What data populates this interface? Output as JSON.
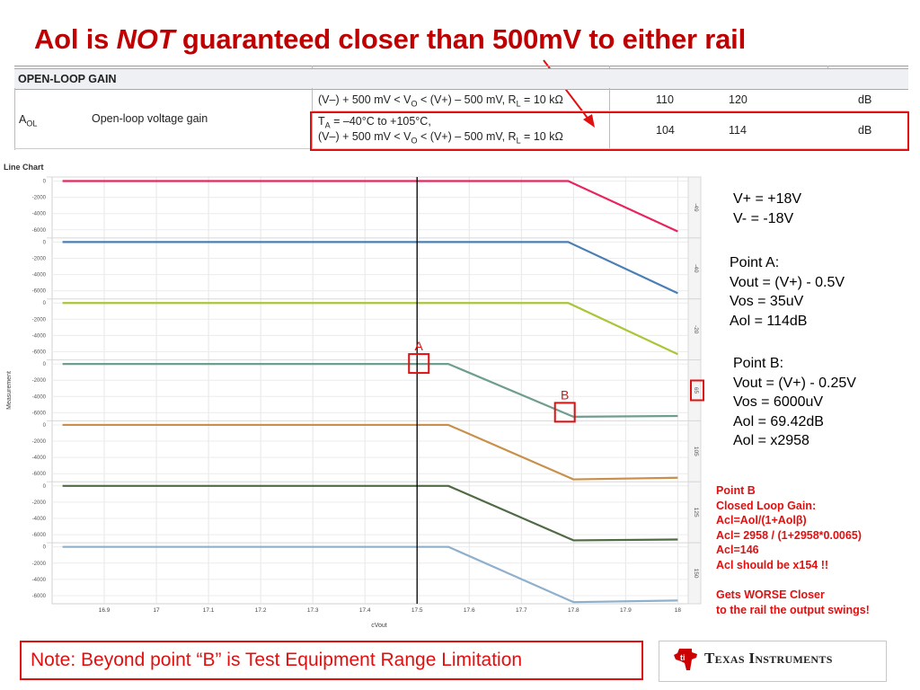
{
  "title": {
    "pre": "Aol is ",
    "emph": "NOT",
    "post": " guaranteed closer than 500mV to either rail"
  },
  "spec_table": {
    "header": "OPEN-LOOP GAIN",
    "symbol": "A",
    "symbol_sub": "OL",
    "parameter": "Open-loop voltage gain",
    "rows": [
      {
        "line1": "(V–) + 500 mV < V",
        "line1_sub": "O",
        "line1_mid": " < (V+) – 500 mV, R",
        "line1_sub2": "L",
        "line1_end": " = 10 kΩ",
        "line2_pre": "",
        "min": "110",
        "typ": "120",
        "unit": "dB"
      },
      {
        "line0_pre": "T",
        "line0_sub": "A",
        "line0_end": " = –40°C to +105°C,",
        "line1": "(V–) + 500 mV < V",
        "line1_sub": "O",
        "line1_mid": " < (V+) – 500 mV, R",
        "line1_sub2": "L",
        "line1_end": " = 10 kΩ",
        "min": "104",
        "typ": "114",
        "unit": "dB"
      }
    ]
  },
  "chart_data": {
    "type": "line",
    "title": "Line Chart",
    "xlabel": "cVout",
    "ylabel": "Measurement",
    "xlim": [
      16.8,
      18.02
    ],
    "x_ticks": [
      "16.9",
      "17",
      "17.1",
      "17.2",
      "17.3",
      "17.4",
      "17.5",
      "17.6",
      "17.7",
      "17.8",
      "17.9",
      "18"
    ],
    "panel_ylim": [
      -7000,
      500
    ],
    "panel_y_ticks": [
      "0",
      "-2000",
      "-4000",
      "-6000"
    ],
    "cursor_x": 17.5,
    "grid": true,
    "panels": [
      {
        "label": "-49",
        "color": "#e8245e",
        "points": [
          [
            16.82,
            0
          ],
          [
            17.79,
            0
          ],
          [
            18.0,
            -6200
          ]
        ]
      },
      {
        "label": "-40",
        "color": "#4a7fb5",
        "points": [
          [
            16.82,
            0
          ],
          [
            17.79,
            0
          ],
          [
            18.0,
            -6300
          ]
        ]
      },
      {
        "label": "-20",
        "color": "#a9c638",
        "points": [
          [
            16.82,
            0
          ],
          [
            17.79,
            0
          ],
          [
            18.0,
            -6300
          ]
        ]
      },
      {
        "label": "65",
        "color": "#6f9e90",
        "points": [
          [
            16.82,
            0
          ],
          [
            17.56,
            0
          ],
          [
            17.8,
            -6500
          ],
          [
            18.0,
            -6400
          ]
        ]
      },
      {
        "label": "105",
        "color": "#c8904a",
        "points": [
          [
            16.82,
            0
          ],
          [
            17.56,
            0
          ],
          [
            17.8,
            -6700
          ],
          [
            18.0,
            -6500
          ]
        ]
      },
      {
        "label": "125",
        "color": "#4f6a44",
        "points": [
          [
            16.82,
            0
          ],
          [
            17.56,
            0
          ],
          [
            17.8,
            -6700
          ],
          [
            18.0,
            -6600
          ]
        ]
      },
      {
        "label": "150",
        "color": "#8fb0cc",
        "points": [
          [
            16.82,
            0
          ],
          [
            17.56,
            0
          ],
          [
            17.8,
            -6800
          ],
          [
            18.0,
            -6600
          ]
        ]
      }
    ],
    "annotations": [
      {
        "label": "A",
        "x": 17.5,
        "panel": 3,
        "y": 0
      },
      {
        "label": "B",
        "x": 17.78,
        "panel": 3,
        "y": -6000
      }
    ],
    "highlighted_panel_label": "65"
  },
  "panel_text": {
    "rails": [
      "V+ = +18V",
      "V- = -18V"
    ],
    "point_a": [
      "Point A:",
      "Vout = (V+) - 0.5V",
      "Vos = 35uV",
      "Aol = 114dB"
    ],
    "point_b": [
      "Point B:",
      "Vout = (V+) - 0.25V",
      "Vos = 6000uV",
      "Aol = 69.42dB",
      "Aol = x2958"
    ]
  },
  "closed_loop": {
    "lines": [
      "Point B",
      "Closed Loop Gain:",
      "Acl=Aol/(1+Aolβ)",
      "Acl= 2958 / (1+2958*0.0065)",
      "Acl=146",
      "Acl should be x154 !!",
      "",
      "Gets WORSE Closer",
      "to the rail the output swings!"
    ]
  },
  "note": "Note: Beyond point “B” is Test Equipment Range Limitation",
  "brand": {
    "name": "Texas Instruments",
    "color": "#cc0000"
  }
}
